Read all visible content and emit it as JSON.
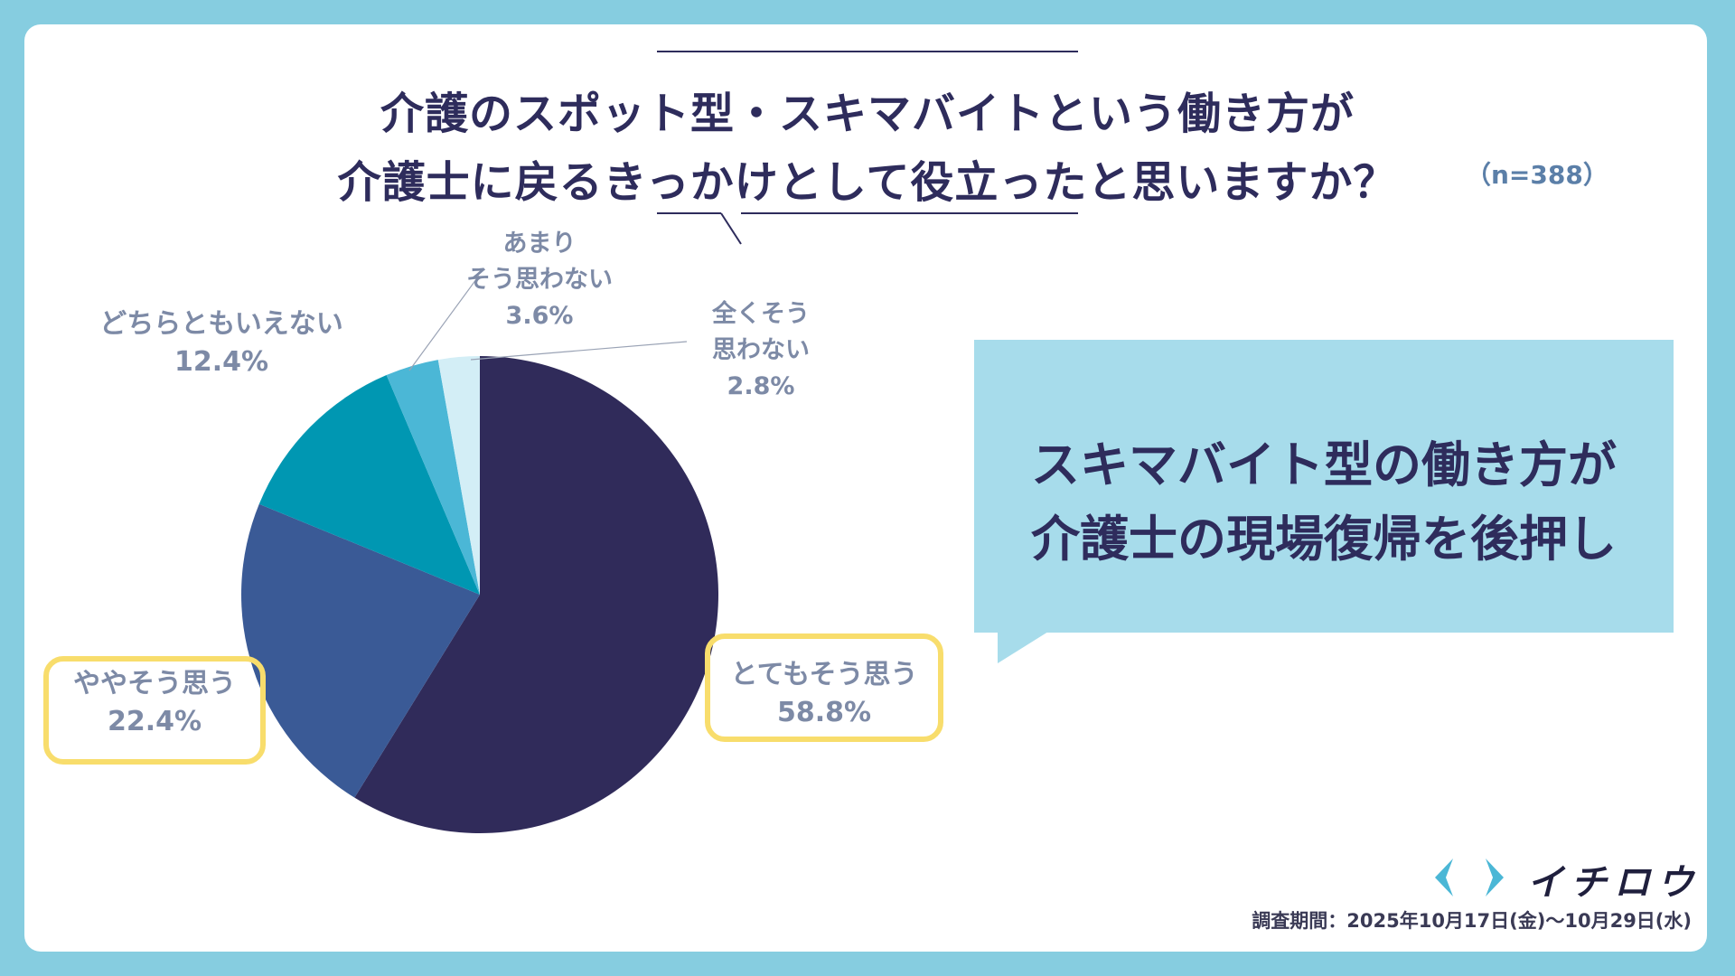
{
  "title": {
    "line1": "介護のスポット型・スキマバイトという働き方が",
    "line2": "介護士に戻るきっかけとして役立ったと思いますか？",
    "sample": "（n=388）"
  },
  "callout": {
    "line1": "スキマバイト型の働き方が",
    "line2": "介護士の現場復帰を後押し"
  },
  "chart_data": {
    "type": "pie",
    "title": "介護のスポット型・スキマバイトという働き方が介護士に戻るきっかけとして役立ったと思いますか？",
    "slices": [
      {
        "label": "とてもそう思う",
        "value": 58.8,
        "display": "58.8%",
        "color": "#302b5a"
      },
      {
        "label": "ややそう思う",
        "value": 22.4,
        "display": "22.4%",
        "color": "#3a5a96"
      },
      {
        "label": "どちらともいえない",
        "value": 12.4,
        "display": "12.4%",
        "color": "#0097b2"
      },
      {
        "label": "あまりそう思わない",
        "value": 3.6,
        "display": "3.6%",
        "color": "#4bb7d6"
      },
      {
        "label": "全くそう思わない",
        "value": 2.8,
        "display": "2.8%",
        "color": "#d3eef6"
      }
    ]
  },
  "labels": {
    "s0": {
      "line1": "とてもそう思う",
      "line2": "58.8%"
    },
    "s1": {
      "line1": "ややそう思う",
      "line2": "22.4%"
    },
    "s2": {
      "line1": "どちらともいえない",
      "line2": "12.4%"
    },
    "s3": {
      "line1": "あまり",
      "line2": "そう思わない",
      "line3": "3.6%"
    },
    "s4": {
      "line1": "全くそう",
      "line2": "思わない",
      "line3": "2.8%"
    }
  },
  "logo": {
    "name": "イチロウ",
    "icon": "chevron-pair-icon",
    "color": "#4bb7d6"
  },
  "survey_period": "調査期間：2025年10月17日(金)〜10月29日(水)",
  "colors": {
    "background": "#86cde0",
    "highlight": "#f8dd6c",
    "callout": "#a7dceb",
    "title": "#2e2c5c"
  }
}
